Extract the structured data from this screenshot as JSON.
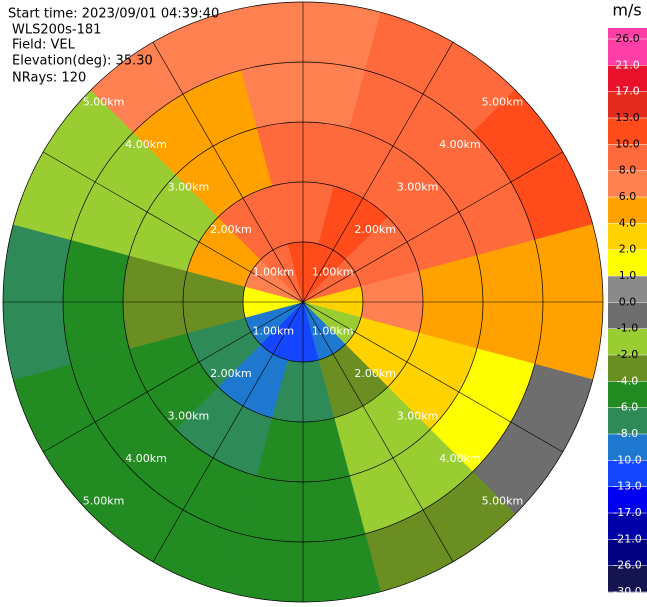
{
  "chart_data": {
    "type": "ppi",
    "info": [
      "Start time: 2023/09/01 04:39:40",
      "WLS200s-181",
      "Field: VEL",
      "Elevation(deg): 35.30",
      "NRays: 120"
    ],
    "unit": "m/s",
    "azimuths": [
      0,
      30,
      60,
      90,
      120,
      150,
      180,
      210,
      240,
      270,
      300,
      330
    ],
    "ranges": [
      0,
      1,
      2,
      3,
      4,
      5
    ],
    "values": [
      [
        11,
        11,
        9,
        3,
        -1.5,
        -9,
        -11.5,
        -11.5,
        -9,
        1.5,
        7,
        9
      ],
      [
        9,
        11,
        9,
        7,
        3,
        -3,
        -7,
        -9,
        -7,
        -3,
        5,
        9
      ],
      [
        9,
        9,
        9,
        5,
        3,
        -1.5,
        -5,
        -7,
        -5,
        -3,
        -1.5,
        5
      ],
      [
        7,
        9,
        9,
        5,
        1.5,
        -1.5,
        -5,
        -5,
        -5,
        -5,
        -1.5,
        5
      ],
      [
        7,
        9,
        11,
        5,
        -0.5,
        -3,
        -5,
        -5,
        -5,
        -7,
        -1.5,
        7
      ]
    ],
    "range_rings": [
      {
        "value": 1,
        "label": "1.00km"
      },
      {
        "value": 2,
        "label": "2.00km"
      },
      {
        "value": 3,
        "label": "3.00km"
      },
      {
        "value": 4,
        "label": "4.00km"
      },
      {
        "value": 5,
        "label": "5.00km"
      }
    ],
    "colorbar": {
      "ticks": [
        {
          "value": 26,
          "label": "26.0"
        },
        {
          "value": 21,
          "label": "21.0"
        },
        {
          "value": 17,
          "label": "17.0"
        },
        {
          "value": 13,
          "label": "13.0"
        },
        {
          "value": 10,
          "label": "10.0"
        },
        {
          "value": 8,
          "label": "8.0"
        },
        {
          "value": 6,
          "label": "6.0"
        },
        {
          "value": 4,
          "label": "4.0"
        },
        {
          "value": 2,
          "label": "2.0"
        },
        {
          "value": 1,
          "label": "1.0"
        },
        {
          "value": 0,
          "label": "0.0"
        },
        {
          "value": -1,
          "label": "-1.0"
        },
        {
          "value": -2,
          "label": "-2.0"
        },
        {
          "value": -4,
          "label": "-4.0"
        },
        {
          "value": -6,
          "label": "-6.0"
        },
        {
          "value": -8,
          "label": "-8.0"
        },
        {
          "value": -10,
          "label": "-10.0"
        },
        {
          "value": -13,
          "label": "-13.0"
        },
        {
          "value": -17,
          "label": "-17.0"
        },
        {
          "value": -21,
          "label": "-21.0"
        },
        {
          "value": -26,
          "label": "-26.0"
        },
        {
          "value": -30,
          "label": "-30.0"
        }
      ],
      "colors": [
        "#ff3fa6",
        "#e8102a",
        "#e32b1e",
        "#ff4c1a",
        "#ff6a3d",
        "#ff8050",
        "#ffa200",
        "#ffd200",
        "#ffff00",
        "#8a8a8a",
        "#6e6e6e",
        "#9acd32",
        "#6b8e23",
        "#228b22",
        "#2e8b57",
        "#1e78d0",
        "#1446ff",
        "#0000f0",
        "#0000a8",
        "#000080",
        "#141450"
      ]
    }
  }
}
